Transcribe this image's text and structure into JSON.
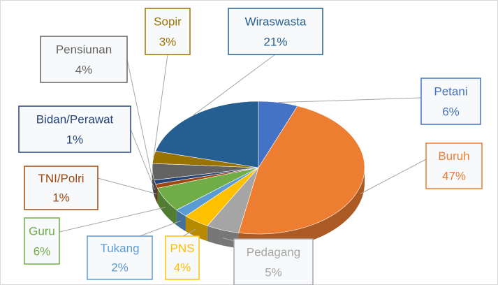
{
  "chart_data": {
    "type": "pie",
    "categories": [
      "Petani",
      "Buruh",
      "Pedagang",
      "PNS",
      "Tukang",
      "Guru",
      "TNI/Polri",
      "Bidan/Perawat",
      "Pensiunan",
      "Sopir",
      "Wiraswasta"
    ],
    "values": [
      6,
      47,
      5,
      4,
      2,
      6,
      1,
      1,
      4,
      3,
      21
    ],
    "value_labels": [
      "6%",
      "47%",
      "5%",
      "4%",
      "2%",
      "6%",
      "1%",
      "1%",
      "4%",
      "3%",
      "21%"
    ],
    "colors": [
      "#4472c4",
      "#ed7d31",
      "#a5a5a5",
      "#ffc000",
      "#5b9bd5",
      "#70ad47",
      "#9e480e",
      "#264478",
      "#636363",
      "#997300",
      "#255e91"
    ]
  }
}
